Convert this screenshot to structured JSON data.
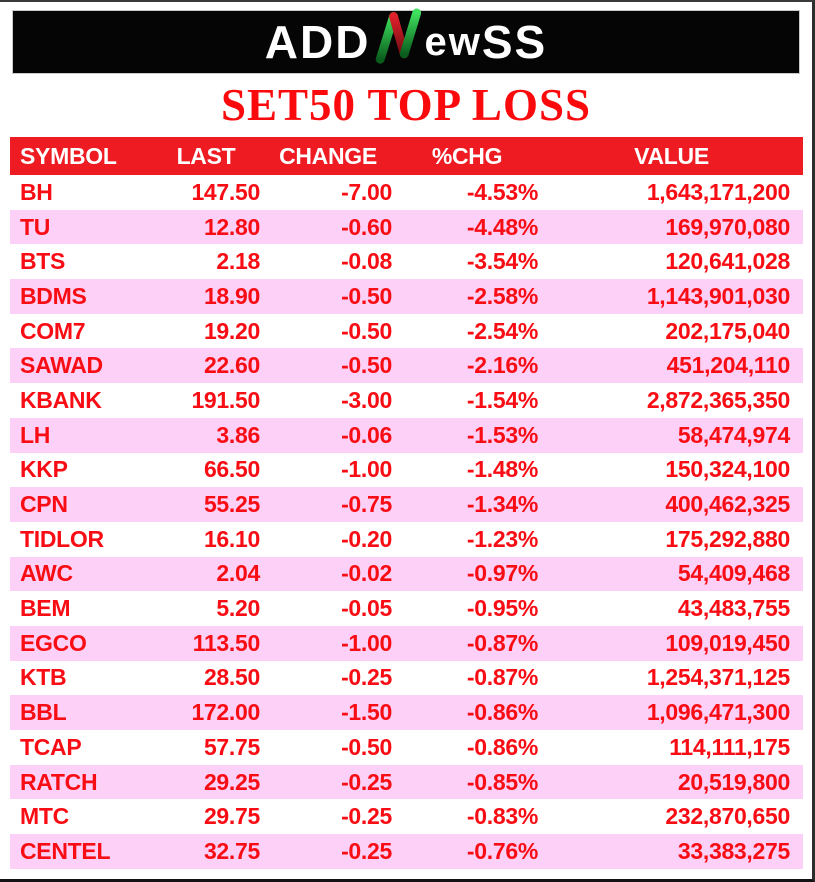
{
  "logo": {
    "part_add": "ADD",
    "part_e": "e",
    "part_w": "w",
    "part_ss": "SS",
    "n_green": "#2fd152",
    "n_red": "#d5121d"
  },
  "title": "SET50 TOP LOSS",
  "theme": {
    "header_bg": "#ee1b23",
    "row_alt_bg": "#fdd0f7",
    "text_red": "#f90d15",
    "title_red": "#fb0a0d",
    "banner_bg": "#050505"
  },
  "chart_data": {
    "type": "table",
    "title": "SET50 TOP LOSS",
    "columns": [
      "SYMBOL",
      "LAST",
      "CHANGE",
      "%CHG",
      "VALUE"
    ],
    "rows": [
      [
        "BH",
        "147.50",
        "-7.00",
        "-4.53%",
        "1,643,171,200"
      ],
      [
        "TU",
        "12.80",
        "-0.60",
        "-4.48%",
        "169,970,080"
      ],
      [
        "BTS",
        "2.18",
        "-0.08",
        "-3.54%",
        "120,641,028"
      ],
      [
        "BDMS",
        "18.90",
        "-0.50",
        "-2.58%",
        "1,143,901,030"
      ],
      [
        "COM7",
        "19.20",
        "-0.50",
        "-2.54%",
        "202,175,040"
      ],
      [
        "SAWAD",
        "22.60",
        "-0.50",
        "-2.16%",
        "451,204,110"
      ],
      [
        "KBANK",
        "191.50",
        "-3.00",
        "-1.54%",
        "2,872,365,350"
      ],
      [
        "LH",
        "3.86",
        "-0.06",
        "-1.53%",
        "58,474,974"
      ],
      [
        "KKP",
        "66.50",
        "-1.00",
        "-1.48%",
        "150,324,100"
      ],
      [
        "CPN",
        "55.25",
        "-0.75",
        "-1.34%",
        "400,462,325"
      ],
      [
        "TIDLOR",
        "16.10",
        "-0.20",
        "-1.23%",
        "175,292,880"
      ],
      [
        "AWC",
        "2.04",
        "-0.02",
        "-0.97%",
        "54,409,468"
      ],
      [
        "BEM",
        "5.20",
        "-0.05",
        "-0.95%",
        "43,483,755"
      ],
      [
        "EGCO",
        "113.50",
        "-1.00",
        "-0.87%",
        "109,019,450"
      ],
      [
        "KTB",
        "28.50",
        "-0.25",
        "-0.87%",
        "1,254,371,125"
      ],
      [
        "BBL",
        "172.00",
        "-1.50",
        "-0.86%",
        "1,096,471,300"
      ],
      [
        "TCAP",
        "57.75",
        "-0.50",
        "-0.86%",
        "114,111,175"
      ],
      [
        "RATCH",
        "29.25",
        "-0.25",
        "-0.85%",
        "20,519,800"
      ],
      [
        "MTC",
        "29.75",
        "-0.25",
        "-0.83%",
        "232,870,650"
      ],
      [
        "CENTEL",
        "32.75",
        "-0.25",
        "-0.76%",
        "33,383,275"
      ]
    ]
  }
}
